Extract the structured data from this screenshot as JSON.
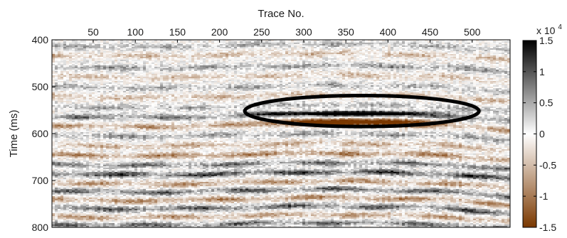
{
  "chart_data": {
    "type": "heatmap",
    "title": "",
    "xlabel": "Trace No.",
    "ylabel": "Time (ms)",
    "x_axis_position": "top",
    "xlim": [
      1,
      545
    ],
    "ylim": [
      400,
      800
    ],
    "y_reversed": true,
    "x_ticks": [
      50,
      100,
      150,
      200,
      250,
      300,
      350,
      400,
      450,
      500
    ],
    "y_ticks": [
      400,
      500,
      600,
      700,
      800
    ],
    "colorbar": {
      "position": "right",
      "range": [
        -15000,
        15000
      ],
      "tick_values": [
        -15000,
        -10000,
        -5000,
        0,
        5000,
        10000,
        15000
      ],
      "tick_labels": [
        "-1.5",
        "-1",
        "-0.5",
        "0",
        "0.5",
        "1",
        "1.5"
      ],
      "multiplier_base": "x 10",
      "multiplier_exp": "4",
      "colors": {
        "negative": "#7a3800",
        "zero": "#ffffff",
        "positive": "#000000"
      }
    },
    "horizons": [
      {
        "time": 412,
        "amp": 0.35
      },
      {
        "time": 432,
        "amp": -0.4
      },
      {
        "time": 458,
        "amp": 0.45
      },
      {
        "time": 478,
        "amp": -0.35
      },
      {
        "time": 500,
        "amp": 0.35
      },
      {
        "time": 520,
        "amp": -0.4
      },
      {
        "time": 542,
        "amp": 0.35
      },
      {
        "time": 562,
        "amp": 0.6
      },
      {
        "time": 582,
        "amp": -0.6
      },
      {
        "time": 603,
        "amp": 0.4
      },
      {
        "time": 624,
        "amp": -0.45
      },
      {
        "time": 645,
        "amp": -0.7
      },
      {
        "time": 665,
        "amp": 0.6
      },
      {
        "time": 685,
        "amp": 0.85
      },
      {
        "time": 705,
        "amp": -0.6
      },
      {
        "time": 722,
        "amp": 0.7
      },
      {
        "time": 740,
        "amp": -0.65
      },
      {
        "time": 758,
        "amp": 0.7
      },
      {
        "time": 776,
        "amp": -0.55
      },
      {
        "time": 793,
        "amp": 0.65
      }
    ],
    "anomaly": {
      "trace_range": [
        230,
        490
      ],
      "bright_time": 557,
      "dim_time": 575
    },
    "annotation": {
      "shape": "ellipse",
      "center_trace": 369,
      "center_time": 552,
      "half_width_traces": 139,
      "half_height_ms": 33
    }
  }
}
